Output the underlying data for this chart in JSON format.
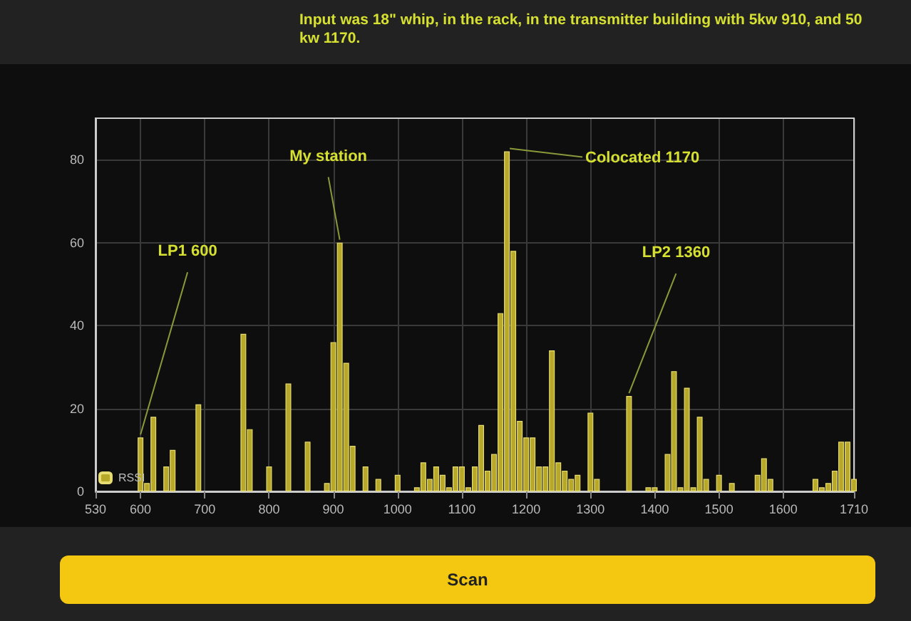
{
  "chart_data": {
    "type": "bar",
    "subtitle": "Input was 18\" whip, in the rack, in tne transmitter building with 5kw 910, and 50 kw 1170.",
    "x": [
      600,
      610,
      620,
      640,
      650,
      690,
      760,
      770,
      800,
      830,
      860,
      890,
      900,
      910,
      920,
      930,
      950,
      970,
      1000,
      1030,
      1040,
      1050,
      1060,
      1070,
      1080,
      1090,
      1100,
      1110,
      1120,
      1130,
      1140,
      1150,
      1160,
      1170,
      1180,
      1190,
      1200,
      1210,
      1220,
      1230,
      1240,
      1250,
      1260,
      1270,
      1280,
      1300,
      1310,
      1360,
      1390,
      1400,
      1420,
      1430,
      1440,
      1450,
      1460,
      1470,
      1480,
      1500,
      1520,
      1560,
      1570,
      1580,
      1650,
      1660,
      1670,
      1680,
      1690,
      1700,
      1710
    ],
    "series": [
      {
        "name": "RSSI",
        "color": "#b8a82a",
        "values": [
          13,
          2,
          18,
          6,
          10,
          21,
          38,
          15,
          6,
          26,
          12,
          2,
          36,
          60,
          31,
          11,
          6,
          3,
          4,
          1,
          7,
          3,
          6,
          4,
          1,
          6,
          6,
          1,
          6,
          16,
          5,
          9,
          43,
          82,
          58,
          17,
          13,
          13,
          6,
          6,
          34,
          7,
          5,
          3,
          4,
          19,
          3,
          23,
          1,
          1,
          9,
          29,
          1,
          25,
          1,
          18,
          3,
          4,
          2,
          4,
          8,
          3,
          3,
          1,
          2,
          5,
          12,
          12,
          3
        ]
      }
    ],
    "xlim": [
      530,
      1710
    ],
    "xticks": [
      530,
      600,
      700,
      800,
      900,
      1000,
      1100,
      1200,
      1300,
      1400,
      1500,
      1600,
      1710
    ],
    "ylim": [
      0,
      90
    ],
    "yticks": [
      0,
      20,
      40,
      60,
      80
    ],
    "grid": true,
    "legend": "bottom left",
    "annotations": [
      {
        "text": "LP1 600",
        "x": 600,
        "y": 13
      },
      {
        "text": "My station",
        "x": 910,
        "y": 60
      },
      {
        "text": "Colocated 1170",
        "x": 1170,
        "y": 82
      },
      {
        "text": "LP2 1360",
        "x": 1360,
        "y": 23
      },
      "Scan"
    ]
  }
}
